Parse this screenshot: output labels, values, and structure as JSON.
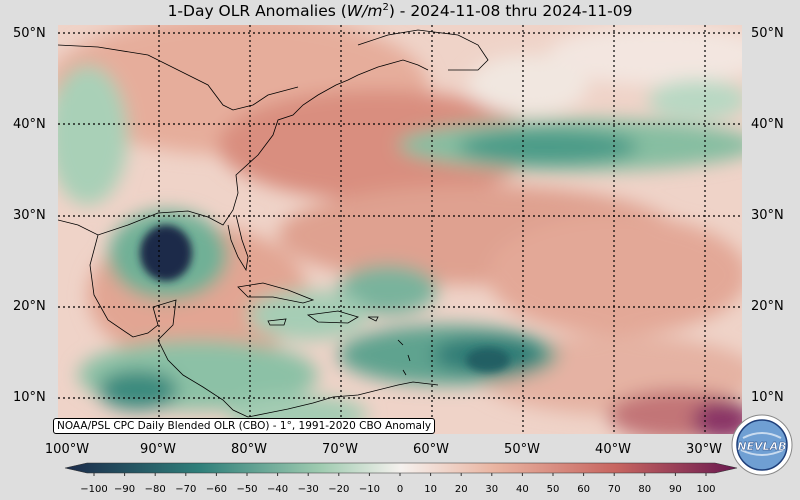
{
  "title": {
    "prefix": "1-Day OLR Anomalies (",
    "unit_base": "W/m",
    "unit_exp": "2",
    "suffix": ") - 2024-11-08 thru 2024-11-09"
  },
  "lat_labels": [
    "50°N",
    "40°N",
    "30°N",
    "20°N",
    "10°N"
  ],
  "lon_labels": [
    "100°W",
    "90°W",
    "80°W",
    "70°W",
    "60°W",
    "50°W",
    "40°W",
    "30°W"
  ],
  "colorbar": {
    "ticks": [
      "−100",
      "−90",
      "−80",
      "−70",
      "−60",
      "−50",
      "−40",
      "−30",
      "−20",
      "−10",
      "0",
      "10",
      "20",
      "30",
      "40",
      "50",
      "60",
      "70",
      "80",
      "90",
      "100"
    ],
    "colors": {
      "strong_negative": "#1b2a4a",
      "negative": "#2f7f7a",
      "weak_negative": "#9fcbb0",
      "neutral": "#f5f1ee",
      "weak_positive": "#e9b4a1",
      "positive": "#c76560",
      "strong_positive": "#6a1950"
    }
  },
  "footnote": "NOAA/PSL CPC Daily Blended OLR (CBO) - 1°, 1991-2020 CBO Anomaly",
  "logo": {
    "text": "NEVLAB",
    "icon": "nevlab-globe-logo"
  }
}
